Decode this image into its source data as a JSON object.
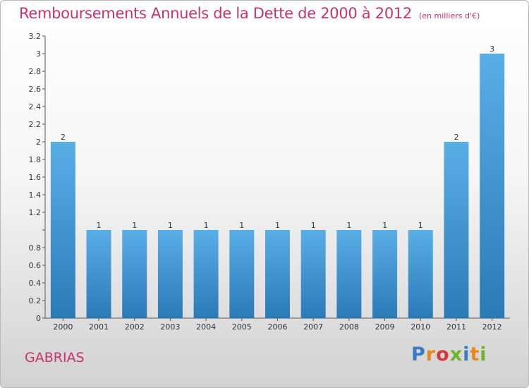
{
  "header": {
    "title": "Remboursements Annuels de la Dette de 2000 à 2012",
    "unit": "(en milliers d'€)"
  },
  "footer": {
    "commune": "GABRIAS",
    "logo": "Proxiti"
  },
  "colors": {
    "bar_light": "#5aaee6",
    "bar_dark": "#2a7ab8",
    "title": "#c8336d"
  },
  "chart_data": {
    "type": "bar",
    "title": "Remboursements Annuels de la Dette de 2000 à 2012",
    "categories": [
      "2000",
      "2001",
      "2002",
      "2003",
      "2004",
      "2005",
      "2006",
      "2007",
      "2008",
      "2009",
      "2010",
      "2011",
      "2012"
    ],
    "values": [
      2,
      1,
      1,
      1,
      1,
      1,
      1,
      1,
      1,
      1,
      1,
      2,
      3
    ],
    "value_labels": [
      "2",
      "1",
      "1",
      "1",
      "1",
      "1",
      "1",
      "1",
      "1",
      "1",
      "1",
      "2",
      "3"
    ],
    "ylim": [
      0,
      3.2
    ],
    "yticks": [
      0,
      0.2,
      0.4,
      0.6,
      0.8,
      1,
      1.2,
      1.4,
      1.6,
      1.8,
      2,
      2.2,
      2.4,
      2.6,
      2.8,
      3,
      3.2
    ],
    "ytick_labels": [
      "0",
      "0.2",
      "0.4",
      "0.6",
      "0.8",
      "",
      "1.2",
      "1.4",
      "1.6",
      "1.8",
      "2",
      "2.2",
      "2.4",
      "2.6",
      "2.8",
      "3",
      "3.2"
    ],
    "grid": false,
    "legend": "none"
  }
}
